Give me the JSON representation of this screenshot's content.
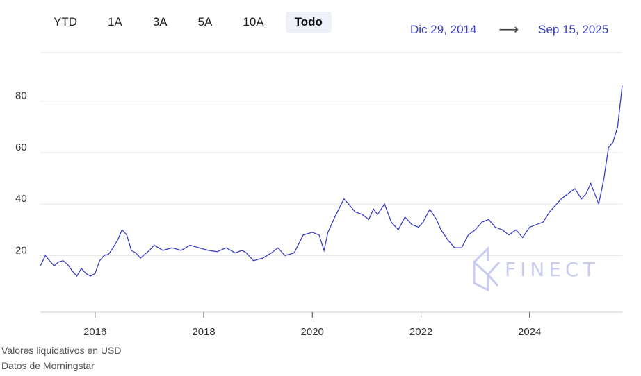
{
  "range_tabs": [
    {
      "label": "YTD",
      "active": false
    },
    {
      "label": "1A",
      "active": false
    },
    {
      "label": "3A",
      "active": false
    },
    {
      "label": "5A",
      "active": false
    },
    {
      "label": "10A",
      "active": false
    },
    {
      "label": "Todo",
      "active": true
    }
  ],
  "date_range": {
    "start": "Dic 29, 2014",
    "arrow": "⟶",
    "end": "Sep 15, 2025",
    "color": "#3a3fc4"
  },
  "footer": {
    "line1": "Valores liquidativos en USD",
    "line2": "Datos de Morningstar"
  },
  "watermark": {
    "text": "FINECT",
    "icon": "finect-logo-icon",
    "color": "#c9cbef"
  },
  "chart_data": {
    "type": "line",
    "line_color": "#3a3fc4",
    "grid": true,
    "xlim": [
      "2014-12-29",
      "2025-09-15"
    ],
    "ylim": [
      -2,
      95
    ],
    "y_ticks": [
      20,
      40,
      60,
      80
    ],
    "x_ticks": [
      "2016",
      "2018",
      "2020",
      "2022",
      "2024"
    ],
    "series": [
      {
        "x": [
          "2014-12-29",
          "2015-02-01",
          "2015-03-01",
          "2015-04-01",
          "2015-05-01",
          "2015-06-01",
          "2015-07-01",
          "2015-08-01",
          "2015-09-01",
          "2015-10-01",
          "2015-11-01",
          "2015-12-01",
          "2016-01-01",
          "2016-02-01",
          "2016-03-01",
          "2016-04-01",
          "2016-05-01",
          "2016-06-01",
          "2016-07-01",
          "2016-08-01",
          "2016-09-01",
          "2016-10-01",
          "2016-11-01",
          "2016-12-01",
          "2017-01-01",
          "2017-02-01",
          "2017-04-01",
          "2017-06-01",
          "2017-08-01",
          "2017-10-01",
          "2017-12-01",
          "2018-02-01",
          "2018-04-01",
          "2018-06-01",
          "2018-08-01",
          "2018-09-15",
          "2018-10-15",
          "2018-12-01",
          "2019-02-01",
          "2019-04-01",
          "2019-05-15",
          "2019-07-01",
          "2019-09-01",
          "2019-11-01",
          "2020-01-01",
          "2020-02-15",
          "2020-03-20",
          "2020-04-15",
          "2020-06-01",
          "2020-08-01",
          "2020-09-01",
          "2020-10-15",
          "2020-12-01",
          "2021-01-15",
          "2021-02-15",
          "2021-03-15",
          "2021-05-01",
          "2021-06-15",
          "2021-08-01",
          "2021-09-15",
          "2021-11-01",
          "2021-12-15",
          "2022-01-15",
          "2022-03-01",
          "2022-04-15",
          "2022-05-15",
          "2022-07-01",
          "2022-08-15",
          "2022-10-01",
          "2022-11-15",
          "2023-01-01",
          "2023-02-15",
          "2023-04-01",
          "2023-05-15",
          "2023-07-01",
          "2023-08-15",
          "2023-10-01",
          "2023-11-15",
          "2024-01-01",
          "2024-02-15",
          "2024-04-01",
          "2024-05-15",
          "2024-07-01",
          "2024-08-01",
          "2024-09-15",
          "2024-11-01",
          "2024-12-15",
          "2025-01-15",
          "2025-02-15",
          "2025-04-10",
          "2025-05-15",
          "2025-06-15",
          "2025-07-15",
          "2025-08-15",
          "2025-09-15"
        ],
        "values": [
          16,
          20,
          18,
          16,
          17.5,
          18,
          16.5,
          14,
          12,
          15,
          13,
          12,
          13,
          18,
          20,
          20.5,
          23,
          26,
          30,
          28,
          22,
          21,
          19,
          20.5,
          22,
          24,
          22,
          23,
          22,
          24,
          23,
          22,
          21.5,
          23,
          21,
          22,
          21,
          18,
          19,
          21,
          23,
          20,
          21,
          28,
          29,
          28,
          22,
          29,
          35,
          42,
          40,
          37,
          36,
          34,
          38,
          36,
          40,
          33,
          30,
          35,
          32,
          31,
          33,
          38,
          34,
          30,
          26,
          23,
          23,
          28,
          30,
          33,
          34,
          31,
          30,
          28,
          30,
          27,
          31,
          32,
          33,
          37,
          40,
          42,
          44,
          46,
          42,
          44,
          48,
          40,
          50,
          62,
          64,
          70,
          86
        ]
      }
    ]
  }
}
